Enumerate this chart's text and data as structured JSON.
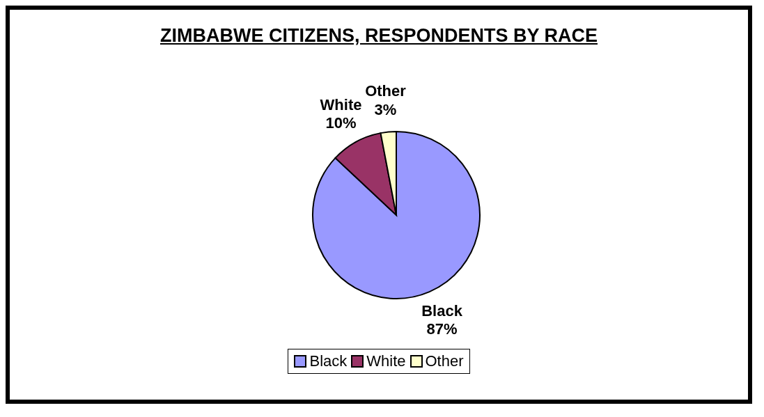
{
  "chart_data": {
    "type": "pie",
    "title": "ZIMBABWE CITIZENS, RESPONDENTS BY RACE",
    "categories": [
      "Black",
      "White",
      "Other"
    ],
    "values": [
      87,
      10,
      3
    ],
    "colors": [
      "#9999ff",
      "#993366",
      "#ffffcc"
    ],
    "value_labels": [
      "87%",
      "10%",
      "3%"
    ],
    "data_labels": true,
    "legend": "bottom"
  }
}
